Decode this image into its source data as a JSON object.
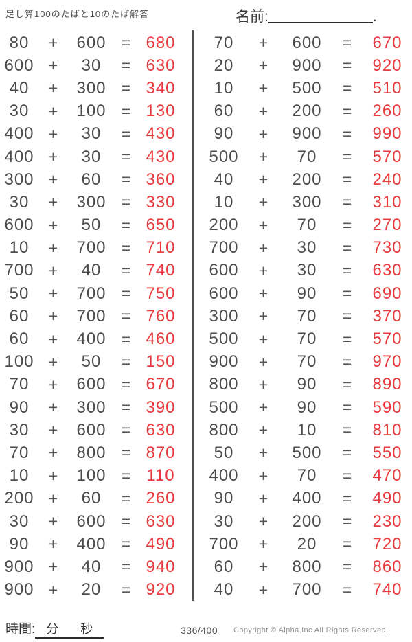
{
  "header": {
    "title": "足し算100のたばと10のたば解答",
    "name_label": "名前:",
    "name_suffix": "."
  },
  "symbols": {
    "plus": "+",
    "equals": "="
  },
  "problems": {
    "left": [
      {
        "a": "80",
        "b": "600",
        "ans": "680"
      },
      {
        "a": "600",
        "b": "30",
        "ans": "630"
      },
      {
        "a": "40",
        "b": "300",
        "ans": "340"
      },
      {
        "a": "30",
        "b": "100",
        "ans": "130"
      },
      {
        "a": "400",
        "b": "30",
        "ans": "430"
      },
      {
        "a": "400",
        "b": "30",
        "ans": "430"
      },
      {
        "a": "300",
        "b": "60",
        "ans": "360"
      },
      {
        "a": "30",
        "b": "300",
        "ans": "330"
      },
      {
        "a": "600",
        "b": "50",
        "ans": "650"
      },
      {
        "a": "10",
        "b": "700",
        "ans": "710"
      },
      {
        "a": "700",
        "b": "40",
        "ans": "740"
      },
      {
        "a": "50",
        "b": "700",
        "ans": "750"
      },
      {
        "a": "60",
        "b": "700",
        "ans": "760"
      },
      {
        "a": "60",
        "b": "400",
        "ans": "460"
      },
      {
        "a": "100",
        "b": "50",
        "ans": "150"
      },
      {
        "a": "70",
        "b": "600",
        "ans": "670"
      },
      {
        "a": "90",
        "b": "300",
        "ans": "390"
      },
      {
        "a": "30",
        "b": "600",
        "ans": "630"
      },
      {
        "a": "70",
        "b": "800",
        "ans": "870"
      },
      {
        "a": "10",
        "b": "100",
        "ans": "110"
      },
      {
        "a": "200",
        "b": "60",
        "ans": "260"
      },
      {
        "a": "30",
        "b": "600",
        "ans": "630"
      },
      {
        "a": "90",
        "b": "400",
        "ans": "490"
      },
      {
        "a": "900",
        "b": "40",
        "ans": "940"
      },
      {
        "a": "900",
        "b": "20",
        "ans": "920"
      }
    ],
    "right": [
      {
        "a": "70",
        "b": "600",
        "ans": "670"
      },
      {
        "a": "20",
        "b": "900",
        "ans": "920"
      },
      {
        "a": "10",
        "b": "500",
        "ans": "510"
      },
      {
        "a": "60",
        "b": "200",
        "ans": "260"
      },
      {
        "a": "90",
        "b": "900",
        "ans": "990"
      },
      {
        "a": "500",
        "b": "70",
        "ans": "570"
      },
      {
        "a": "40",
        "b": "200",
        "ans": "240"
      },
      {
        "a": "10",
        "b": "300",
        "ans": "310"
      },
      {
        "a": "200",
        "b": "70",
        "ans": "270"
      },
      {
        "a": "700",
        "b": "30",
        "ans": "730"
      },
      {
        "a": "600",
        "b": "30",
        "ans": "630"
      },
      {
        "a": "600",
        "b": "90",
        "ans": "690"
      },
      {
        "a": "300",
        "b": "70",
        "ans": "370"
      },
      {
        "a": "500",
        "b": "70",
        "ans": "570"
      },
      {
        "a": "900",
        "b": "70",
        "ans": "970"
      },
      {
        "a": "800",
        "b": "90",
        "ans": "890"
      },
      {
        "a": "500",
        "b": "90",
        "ans": "590"
      },
      {
        "a": "800",
        "b": "10",
        "ans": "810"
      },
      {
        "a": "50",
        "b": "500",
        "ans": "550"
      },
      {
        "a": "400",
        "b": "70",
        "ans": "470"
      },
      {
        "a": "90",
        "b": "400",
        "ans": "490"
      },
      {
        "a": "30",
        "b": "200",
        "ans": "230"
      },
      {
        "a": "700",
        "b": "20",
        "ans": "720"
      },
      {
        "a": "60",
        "b": "800",
        "ans": "860"
      },
      {
        "a": "40",
        "b": "700",
        "ans": "740"
      }
    ]
  },
  "footer": {
    "time_label": "時間:",
    "minutes_label": "分",
    "seconds_label": "秒",
    "page": "336/400",
    "copyright": "Copyright ©  Alpha.Inc All Rights Reserved."
  },
  "colors": {
    "answer": "#e8393d",
    "ink": "#4c4c4c"
  }
}
